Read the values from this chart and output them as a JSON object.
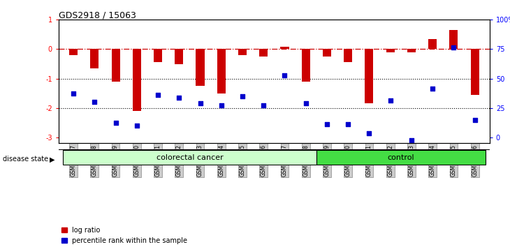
{
  "title": "GDS2918 / 15063",
  "samples": [
    "GSM112207",
    "GSM112208",
    "GSM112299",
    "GSM112300",
    "GSM112301",
    "GSM112302",
    "GSM112303",
    "GSM112304",
    "GSM112305",
    "GSM112306",
    "GSM112307",
    "GSM112308",
    "GSM112309",
    "GSM112310",
    "GSM112311",
    "GSM112312",
    "GSM112313",
    "GSM112314",
    "GSM112315",
    "GSM112316"
  ],
  "log_ratio": [
    -0.2,
    -0.65,
    -1.1,
    -2.1,
    -0.45,
    -0.5,
    -1.25,
    -1.5,
    -0.2,
    -0.25,
    0.08,
    -1.1,
    -0.25,
    -0.45,
    -1.85,
    -0.1,
    -0.1,
    0.35,
    0.65,
    -1.55
  ],
  "percentile_rank_y": [
    -1.5,
    -1.8,
    -2.5,
    -2.6,
    -1.55,
    -1.65,
    -1.85,
    -1.9,
    -1.6,
    -1.9,
    -0.9,
    -1.85,
    -2.55,
    -2.55,
    -2.85,
    -1.75,
    -3.1,
    -1.35,
    0.05,
    -2.4
  ],
  "disease_groups": [
    {
      "label": "colorectal cancer",
      "start": 0,
      "end": 12,
      "color": "#ccffcc"
    },
    {
      "label": "control",
      "start": 12,
      "end": 20,
      "color": "#44dd44"
    }
  ],
  "bar_color": "#CC0000",
  "dot_color": "#0000CC",
  "ylim": [
    -3.2,
    1.0
  ],
  "yticks_left": [
    1,
    0,
    -1,
    -2,
    -3
  ],
  "yticks_left_labels": [
    "1",
    "0",
    "-1",
    "-2",
    "-3"
  ],
  "right_ticks_y": [
    1.0,
    0.0,
    -1.0,
    -2.0,
    -3.0
  ],
  "right_ticks_labels": [
    "100%",
    "75",
    "50",
    "25",
    "0"
  ],
  "hlines_dotted": [
    -1,
    -2
  ],
  "background_color": "#ffffff",
  "legend_items": [
    "log ratio",
    "percentile rank within the sample"
  ],
  "bar_width": 0.4
}
